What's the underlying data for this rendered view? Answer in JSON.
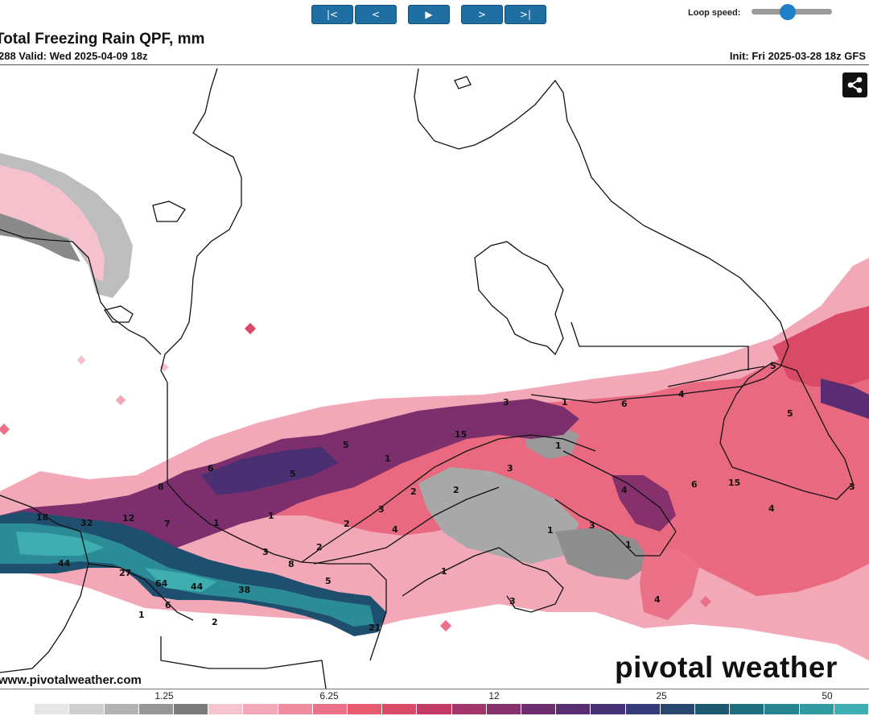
{
  "controls": {
    "first": "|<",
    "prev": "<",
    "play": "▶",
    "next": ">",
    "last": ">|",
    "loop_speed_label": "Loop speed:",
    "loop_speed_fraction": 0.45
  },
  "header": {
    "title": "Total Freezing Rain QPF, mm",
    "valid": "288 Valid: Wed 2025-04-09 18z",
    "init": "Init: Fri 2025-03-28 18z GFS"
  },
  "map": {
    "labels": [
      "18",
      "32",
      "12",
      "44",
      "27",
      "64",
      "44",
      "38",
      "6",
      "1",
      "2",
      "7",
      "8",
      "6",
      "5",
      "5",
      "1",
      "1",
      "3",
      "8",
      "2",
      "3",
      "5",
      "4",
      "1",
      "2",
      "2",
      "3",
      "15",
      "1",
      "3",
      "1",
      "6",
      "4",
      "2",
      "1",
      "4",
      "3",
      "6",
      "15",
      "4",
      "5",
      "1",
      "1",
      "3",
      "4",
      "3",
      "21",
      "5"
    ],
    "share_icon": "share-icon"
  },
  "footer": {
    "watermark": "pivotal weather",
    "site": "www.pivotalweather.com"
  },
  "legend": {
    "ticks": [
      {
        "label": "1.25",
        "value": 1.25
      },
      {
        "label": "6.25",
        "value": 6.25
      },
      {
        "label": "12",
        "value": 12
      },
      {
        "label": "25",
        "value": 25
      },
      {
        "label": "50",
        "value": 50
      }
    ],
    "colors": [
      "#ffffff",
      "#e6e6e6",
      "#cfcfcf",
      "#b3b3b3",
      "#969696",
      "#7a7a7a",
      "#f6c4cf",
      "#f2a8b7",
      "#ee8d9f",
      "#ea7187",
      "#e85b6f",
      "#d94a66",
      "#c03c65",
      "#a3356a",
      "#86306c",
      "#6e2d6e",
      "#5a2d72",
      "#453073",
      "#353a78",
      "#27476f",
      "#1d5a72",
      "#1d6f80",
      "#24848f",
      "#2f9aa0",
      "#3eaeb0"
    ]
  }
}
